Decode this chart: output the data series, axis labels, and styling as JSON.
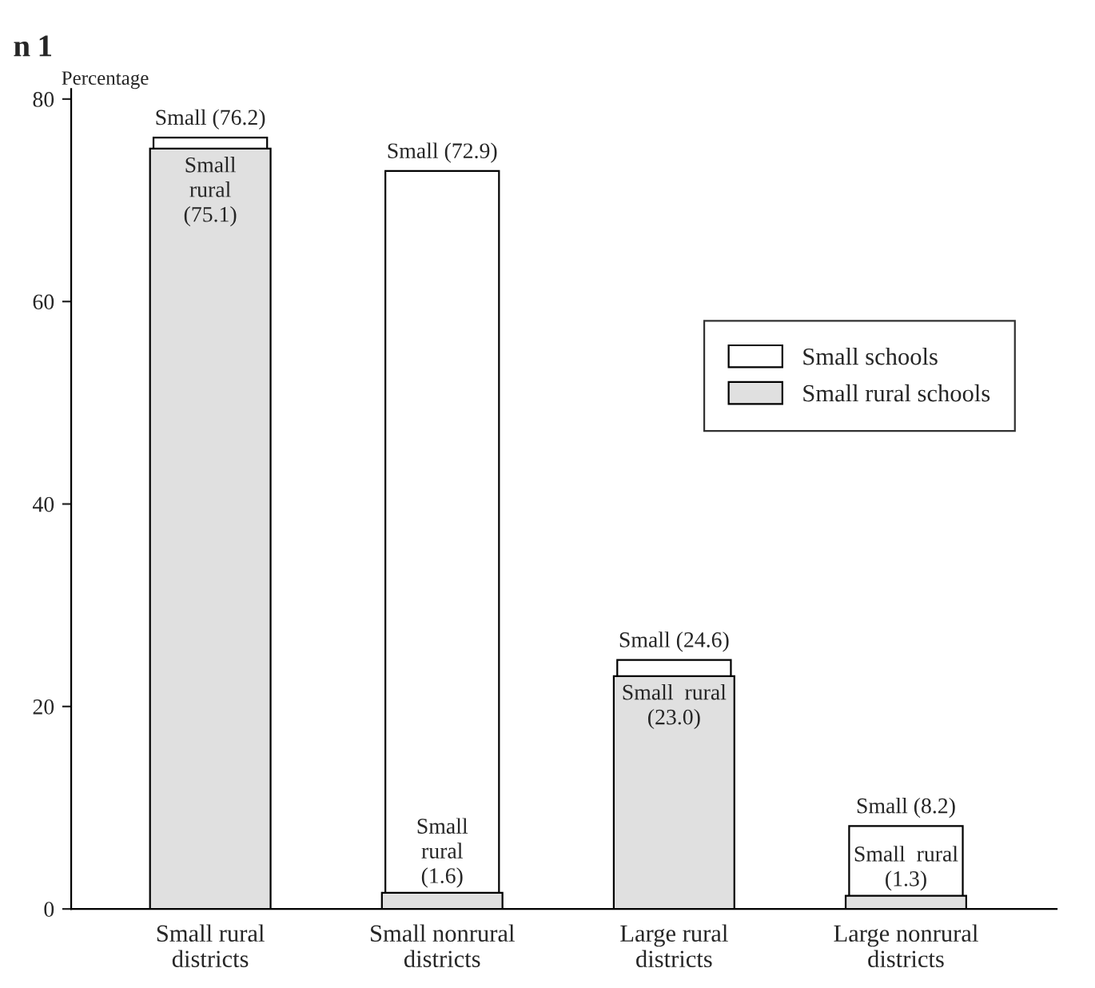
{
  "chart_data": {
    "type": "bar",
    "ylabel": "Percentage",
    "categories": [
      "Small rural\ndistricts",
      "Small nonrural\ndistricts",
      "Large rural\ndistricts",
      "Large nonrural\ndistricts"
    ],
    "series": [
      {
        "name": "Small schools",
        "color": "#ffffff",
        "values": [
          76.2,
          72.9,
          24.6,
          8.2
        ],
        "value_labels": [
          "Small (76.2)",
          "Small (72.9)",
          "Small (24.6)",
          "Small (8.2)"
        ]
      },
      {
        "name": "Small rural schools",
        "color": "#e0e0e0",
        "values": [
          75.1,
          1.6,
          23.0,
          1.3
        ],
        "value_labels": [
          "Small\nrural\n(75.1)",
          "Small\nrural\n(1.6)",
          "Small  rural\n(23.0)",
          "Small  rural\n(1.3)"
        ]
      }
    ],
    "ylim": [
      0,
      81
    ],
    "yticks": [
      0,
      20,
      40,
      60,
      80
    ],
    "grid": false,
    "legend": "right",
    "annotations": [
      "n",
      "1"
    ]
  }
}
